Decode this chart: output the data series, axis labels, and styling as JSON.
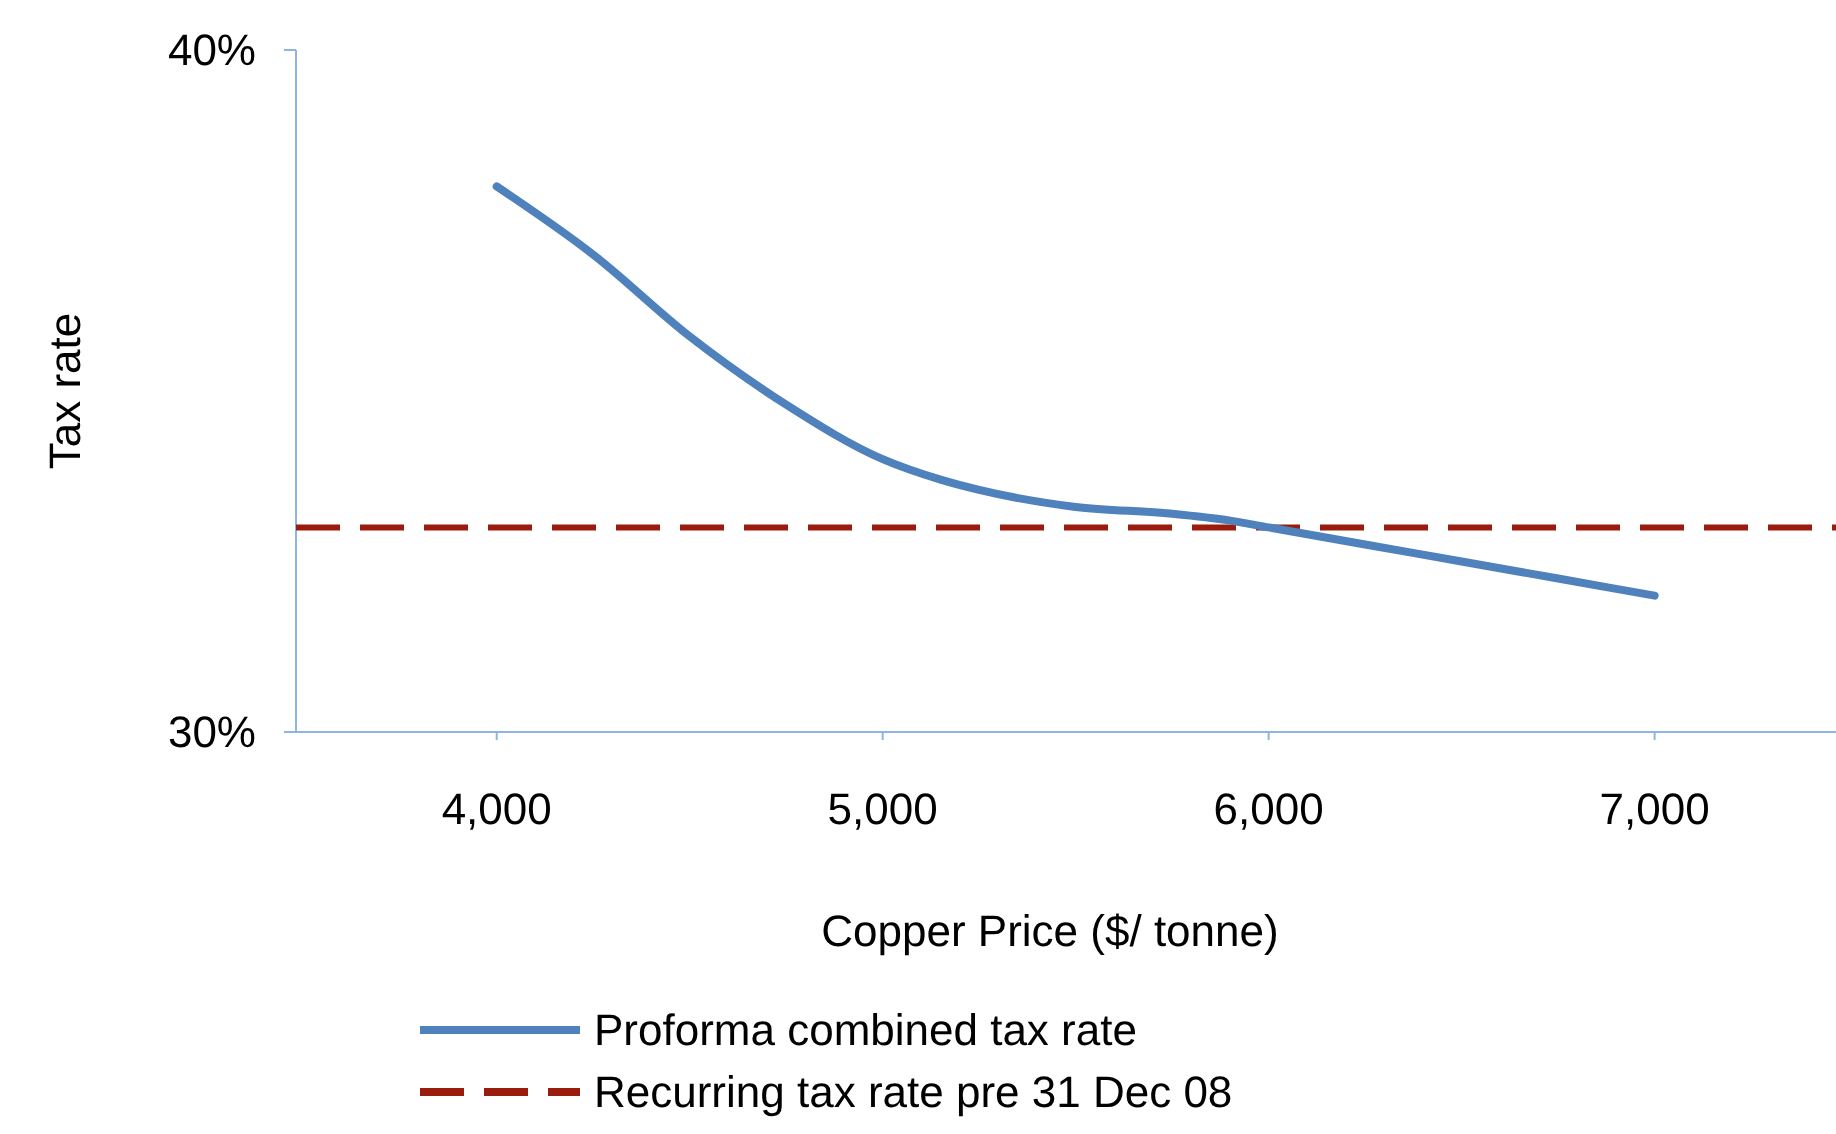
{
  "chart_data": {
    "type": "line",
    "xlabel": "Copper Price ($/ tonne)",
    "ylabel": "Tax rate",
    "xlim": [
      3480,
      7470
    ],
    "xticks": [
      {
        "value": 4000,
        "label": "4,000"
      },
      {
        "value": 5000,
        "label": "5,000"
      },
      {
        "value": 6000,
        "label": "6,000"
      },
      {
        "value": 7000,
        "label": "7,000"
      }
    ],
    "ylim": [
      30,
      40
    ],
    "yticks": [
      {
        "value": 30,
        "label": "30%"
      },
      {
        "value": 40,
        "label": "40%"
      }
    ],
    "x": [
      4000,
      4250,
      4500,
      4750,
      5000,
      5150,
      5250,
      5500,
      5750,
      5900,
      6000,
      6250,
      6500,
      6750,
      7000
    ],
    "series": [
      {
        "name": "Proforma combined tax rate",
        "color": "#4f81bd",
        "values": [
          38.0,
          37.0,
          35.8,
          34.8,
          34.0,
          33.7,
          33.55,
          33.3,
          33.2,
          33.1,
          33.0,
          32.75,
          32.5,
          32.25,
          32.0
        ]
      }
    ],
    "ref_lines": [
      {
        "axis": "y",
        "value": 33.0,
        "label": "Recurring tax rate pre 31 Dec 08",
        "color": "#9b1c0c",
        "line_style": "dashed"
      }
    ],
    "grid": false,
    "legend": "bottom",
    "marker": "none",
    "line_style": "solid"
  }
}
